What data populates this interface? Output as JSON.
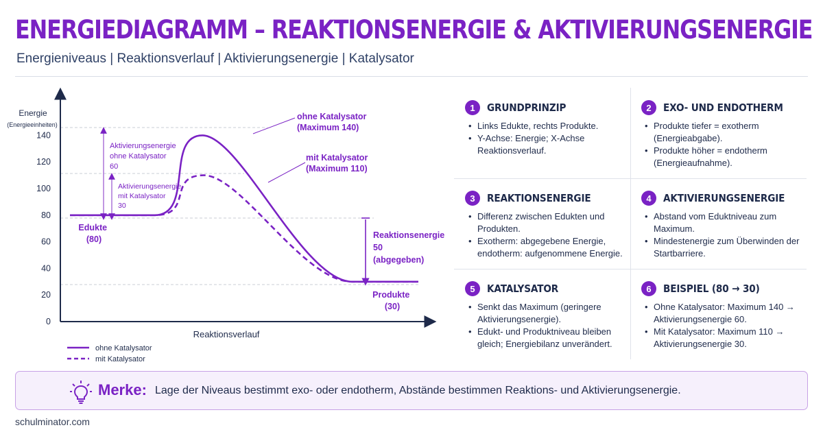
{
  "header": {
    "title": "ENERGIEDIAGRAMM – REAKTIONSENERGIE & AKTIVIERUNGSENERGIE",
    "subtitle": "Energieniveaus | Reaktionsverlauf | Aktivierungsenergie | Katalysator"
  },
  "colors": {
    "accent": "#7a22c4",
    "text": "#1e2a4a",
    "panel_bg": "#f6f0fc",
    "panel_border": "#c7a0e6"
  },
  "chart_data": {
    "type": "line",
    "ylabel": "Energie",
    "ylabel_unit": "(Energieeinheiten)",
    "xlabel": "Reaktionsverlauf",
    "ylim": [
      0,
      150
    ],
    "y_ticks": [
      "0",
      "20",
      "40",
      "60",
      "80",
      "100",
      "120",
      "140"
    ],
    "x": [
      0,
      20,
      40,
      60,
      80,
      100
    ],
    "series": [
      {
        "name": "ohne Katalysator",
        "style": "solid",
        "values": [
          80,
          80,
          140,
          80,
          30,
          30
        ]
      },
      {
        "name": "mit Katalysator",
        "style": "dashed",
        "values": [
          80,
          80,
          110,
          80,
          30,
          30
        ]
      }
    ],
    "annotations": {
      "peak_uncat": [
        "ohne Katalysator",
        "(Maximum 140)"
      ],
      "peak_cat": [
        "mit Katalysator",
        "(Maximum 110)"
      ],
      "ea_uncat": [
        "Aktivierungsenergie",
        "ohne Katalysator",
        "60"
      ],
      "ea_cat": [
        "Aktivierungsenergie",
        "mit Katalysator",
        "30"
      ],
      "educts": [
        "Edukte",
        "(80)"
      ],
      "products": [
        "Produkte",
        "(30)"
      ],
      "reaction_energy": [
        "Reaktionsenergie",
        "50",
        "(abgegeben)"
      ]
    },
    "legend": [
      "ohne Katalysator",
      "mit Katalysator"
    ],
    "legend_position": "bottom-left"
  },
  "cards": [
    {
      "num": "1",
      "title": "GRUNDPRINZIP",
      "items": [
        "Links Edukte, rechts Produkte.",
        "Y-Achse: Energie; X-Achse Reaktionsverlauf."
      ]
    },
    {
      "num": "2",
      "title": "EXO- UND ENDOTHERM",
      "items": [
        "Produkte tiefer = exotherm (Energieabgabe).",
        "Produkte höher = endotherm (Energieaufnahme)."
      ]
    },
    {
      "num": "3",
      "title": "REAKTIONSENERGIE",
      "items": [
        "Differenz zwischen Edukten und Produkten.",
        "Exotherm: abgegebene Energie, endotherm: aufgenommene Energie."
      ]
    },
    {
      "num": "4",
      "title": "AKTIVIERUNGSENERGIE",
      "items": [
        "Abstand vom Eduktniveau zum Maximum.",
        "Mindestenergie zum Überwinden der Startbarriere."
      ]
    },
    {
      "num": "5",
      "title": "KATALYSATOR",
      "items": [
        "Senkt das Maximum (geringere Aktivierungsenergie).",
        "Edukt- und Produktniveau bleiben gleich; Energiebilanz unverändert."
      ]
    },
    {
      "num": "6",
      "title": "BEISPIEL (80 → 30)",
      "items": [
        "Ohne Katalysator: Maximum 140 → Aktivierungsenergie 60.",
        "Mit Katalysator: Maximum 110 → Aktivierungsenergie 30."
      ]
    }
  ],
  "merke": {
    "label": "Merke:",
    "text": "Lage der Niveaus bestimmt exo- oder endotherm, Abstände bestimmen Reaktions- und Aktivierungsenergie.",
    "icon": "lightbulb-icon"
  },
  "footer": "schulminator.com"
}
